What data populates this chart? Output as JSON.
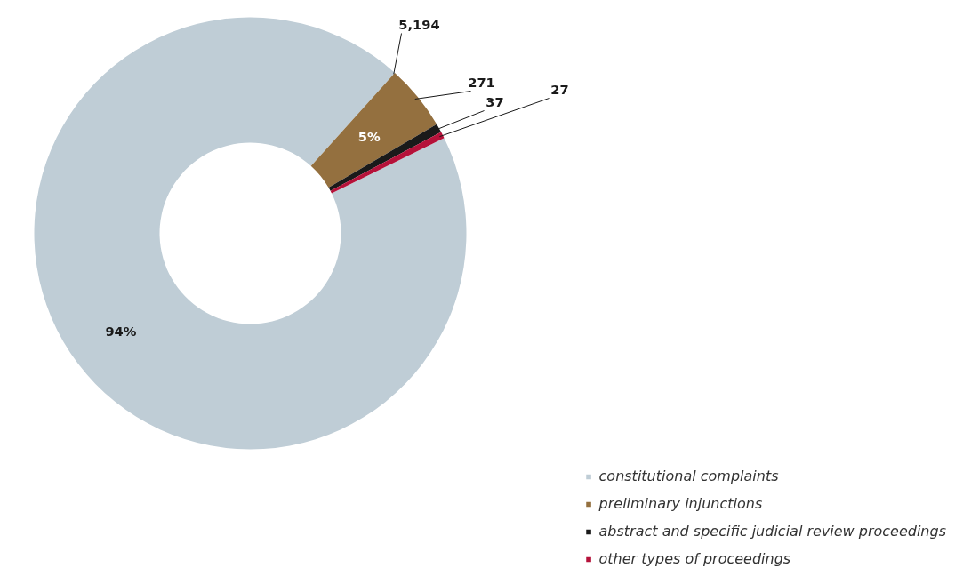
{
  "chart_data": {
    "type": "donut",
    "categories": [
      "constitutional complaints",
      "preliminary injunctions",
      "abstract and specific judicial review proceedings",
      "other types of proceedings"
    ],
    "values": [
      5194,
      271,
      37,
      27
    ],
    "colors": [
      "#bfcdd6",
      "#94703f",
      "#1a1a1a",
      "#b5123a"
    ],
    "value_labels": [
      "5,194",
      "271",
      "37",
      "27"
    ],
    "annotations": [
      "94%",
      "5%"
    ],
    "legend": "bottom right"
  }
}
